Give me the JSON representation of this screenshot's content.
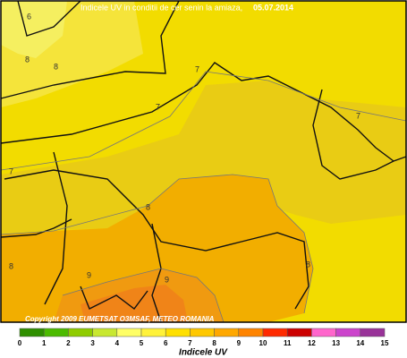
{
  "header": {
    "title": "Indicele UV in conditii de cer senin la amiaza,",
    "date": "05.07.2014"
  },
  "copyright": "Copyright 2009 EUMETSAT O3MSAF, METEO ROMANIA",
  "map": {
    "contour_labels": [
      "6",
      "8",
      "8",
      "7",
      "7",
      "7",
      "7",
      "8",
      "8",
      "8",
      "9",
      "9"
    ]
  },
  "legend": {
    "title": "Indicele UV",
    "ticks": [
      0,
      1,
      2,
      3,
      4,
      5,
      6,
      7,
      8,
      9,
      10,
      11,
      12,
      13,
      14,
      15
    ],
    "colors": [
      "#2f8f00",
      "#4cbb00",
      "#8fcc00",
      "#c8e830",
      "#ffff66",
      "#fff23a",
      "#ffe000",
      "#ffc800",
      "#ffa800",
      "#ff8400",
      "#ff2a00",
      "#cc0000",
      "#ff66cc",
      "#cc44cc",
      "#993399"
    ]
  }
}
